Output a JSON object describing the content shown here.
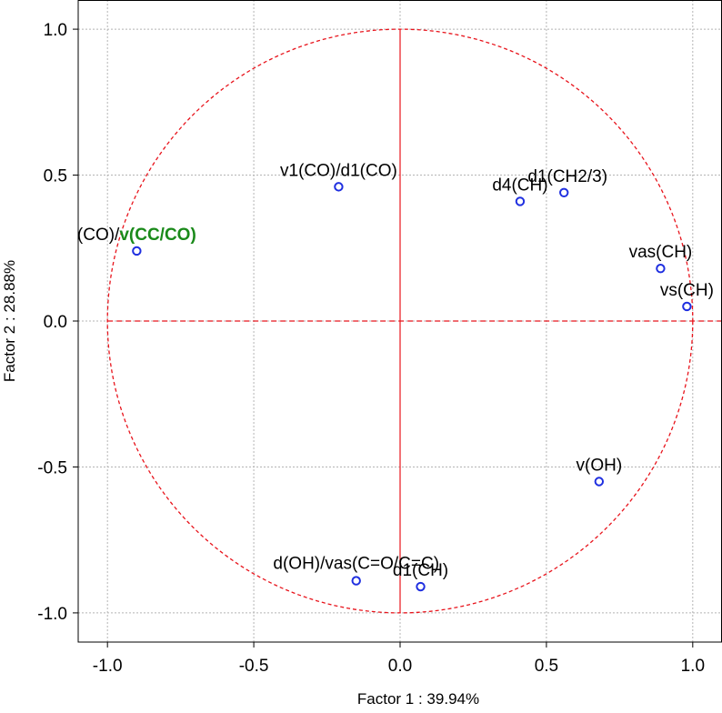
{
  "chart_data": {
    "type": "scatter",
    "title": "",
    "xlabel": "Factor 1 : 39.94%",
    "ylabel": "Factor 2 : 28.88%",
    "xlim": [
      -1.1,
      1.1
    ],
    "ylim": [
      -1.1,
      1.1
    ],
    "xticks": [
      -1.0,
      -0.5,
      0.0,
      0.5,
      1.0
    ],
    "yticks": [
      -1.0,
      -0.5,
      0.0,
      0.5,
      1.0
    ],
    "xtick_labels": [
      "-1.0",
      "-0.5",
      "0.0",
      "0.5",
      "1.0"
    ],
    "ytick_labels": [
      "-1.0",
      "-0.5",
      "0.0",
      "0.5",
      "1.0"
    ],
    "grid": true,
    "unit_circle": {
      "radius": 1.0,
      "color": "#e8141c"
    },
    "axis_line_color": "#e8141c",
    "point_color": "#1f2fe0",
    "highlight_color": "#1a8a1a",
    "points": [
      {
        "label": "v1(CO)/d1(CO)",
        "x": -0.21,
        "y": 0.46
      },
      {
        "label": "d4(CH)",
        "x": 0.41,
        "y": 0.41
      },
      {
        "label": "d1(CH2/3)",
        "x": 0.56,
        "y": 0.44
      },
      {
        "label": "vas(CH)",
        "x": 0.89,
        "y": 0.18
      },
      {
        "label": "vs(CH)",
        "x": 0.98,
        "y": 0.05
      },
      {
        "label": "v(OH)",
        "x": 0.68,
        "y": -0.55
      },
      {
        "label": "d(OH)/vas(C=O/C=C)",
        "x": -0.15,
        "y": -0.89
      },
      {
        "label": "d1(CH)",
        "x": 0.07,
        "y": -0.91
      },
      {
        "label": "(CO)/",
        "label_highlight": "v(CC/CO)",
        "x": -0.9,
        "y": 0.24
      }
    ]
  }
}
